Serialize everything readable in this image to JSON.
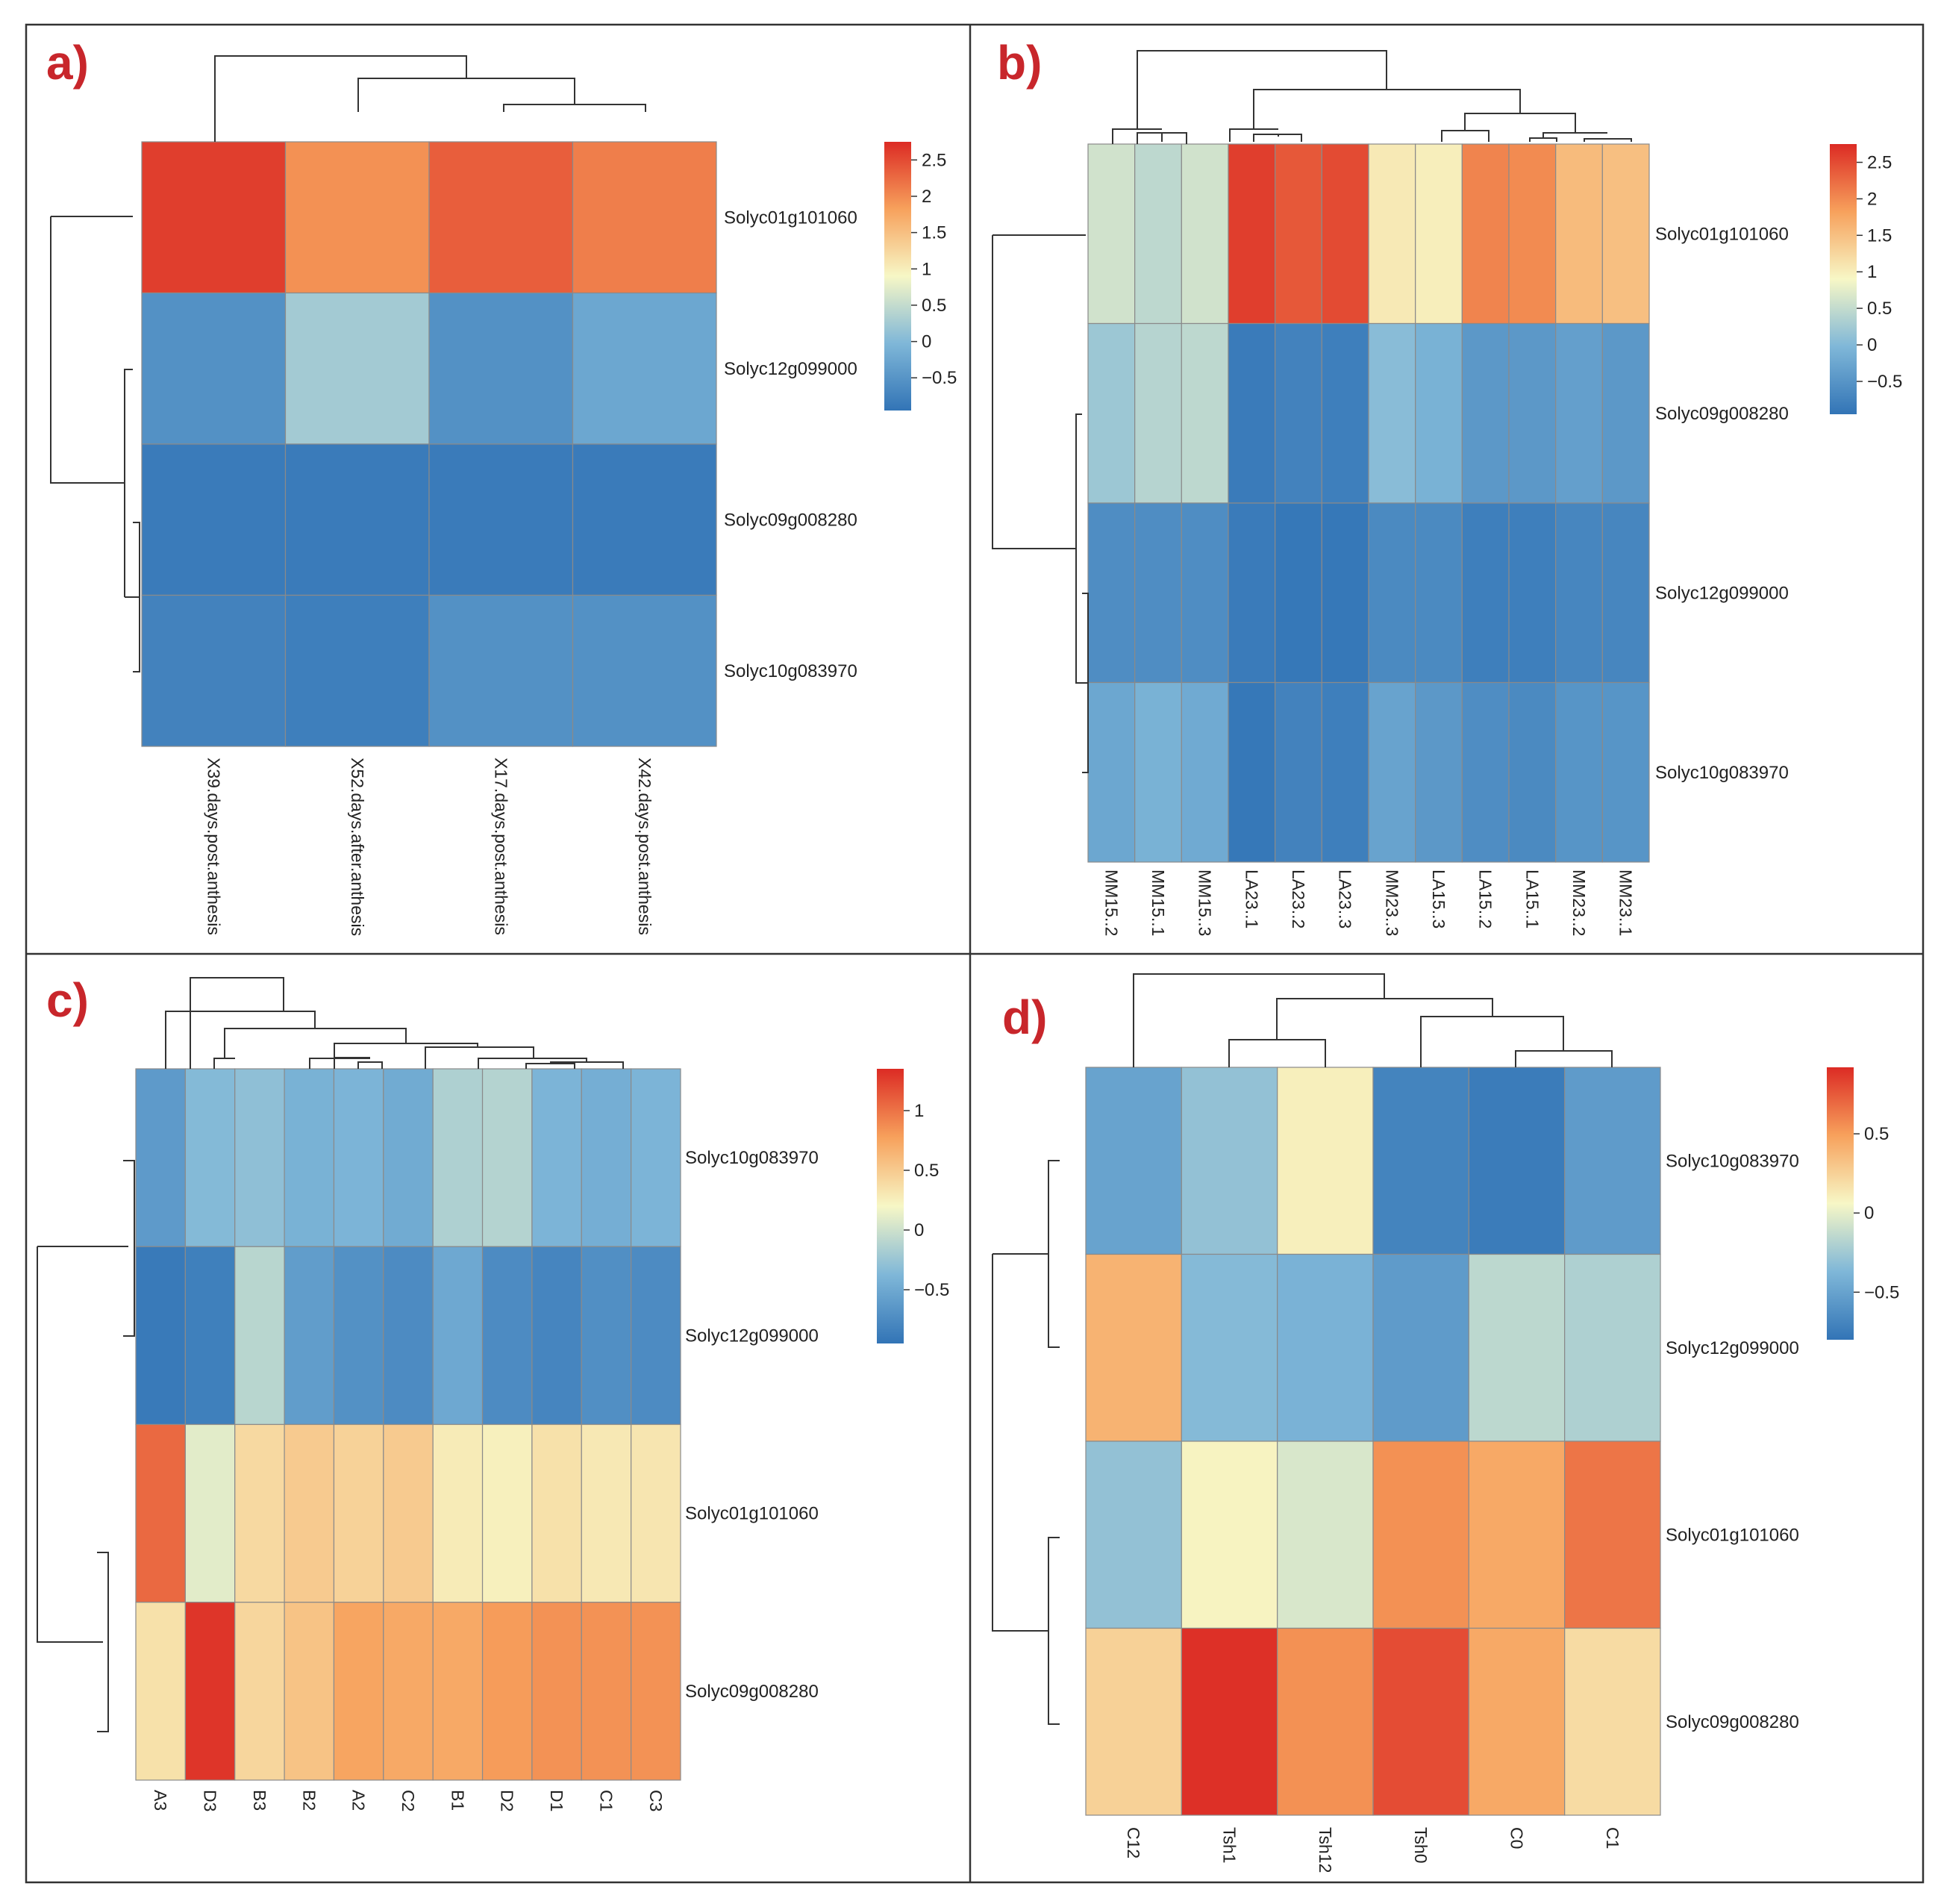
{
  "chart_data": [
    {
      "type": "heatmap",
      "panel_label": "a)",
      "rows": [
        "Solyc01g101060",
        "Solyc12g099000",
        "Solyc09g008280",
        "Solyc10g083970"
      ],
      "columns": [
        "X39.days.post.anthesis",
        "X52.days.after.anthesis",
        "X17.days.post.anthesis",
        "X42.days.post.anthesis"
      ],
      "values": [
        [
          2.6,
          1.95,
          2.35,
          2.1
        ],
        [
          -0.55,
          0.25,
          -0.55,
          -0.25
        ],
        [
          -0.85,
          -0.85,
          -0.85,
          -0.85
        ],
        [
          -0.75,
          -0.8,
          -0.55,
          -0.55
        ]
      ],
      "legend": {
        "min": -0.95,
        "max": 2.75,
        "ticks": [
          2.5,
          2,
          1.5,
          1,
          0.5,
          0,
          -0.5
        ],
        "tick_labels": [
          "2.5",
          "2",
          "1.5",
          "1",
          "0.5",
          "0",
          "−0.5"
        ]
      },
      "row_dendrogram": true,
      "column_dendrogram": true
    },
    {
      "type": "heatmap",
      "panel_label": "b)",
      "rows": [
        "Solyc01g101060",
        "Solyc09g008280",
        "Solyc12g099000",
        "Solyc10g083970"
      ],
      "columns": [
        "MM15..2",
        "MM15..1",
        "MM15..3",
        "LA23..1",
        "LA23..2",
        "LA23..3",
        "MM23..3",
        "LA15..3",
        "LA15..2",
        "LA15..1",
        "MM23..2",
        "MM23..1"
      ],
      "values": [
        [
          0.6,
          0.45,
          0.6,
          2.6,
          2.4,
          2.5,
          1.05,
          1.0,
          2.05,
          2.0,
          1.55,
          1.5
        ],
        [
          0.2,
          0.4,
          0.45,
          -0.85,
          -0.75,
          -0.8,
          0.05,
          -0.1,
          -0.45,
          -0.45,
          -0.35,
          -0.45
        ],
        [
          -0.6,
          -0.6,
          -0.6,
          -0.85,
          -0.9,
          -0.9,
          -0.65,
          -0.65,
          -0.8,
          -0.8,
          -0.7,
          -0.7
        ],
        [
          -0.25,
          -0.1,
          -0.2,
          -0.9,
          -0.75,
          -0.8,
          -0.3,
          -0.45,
          -0.6,
          -0.65,
          -0.5,
          -0.5
        ]
      ],
      "legend": {
        "min": -0.95,
        "max": 2.75,
        "ticks": [
          2.5,
          2,
          1.5,
          1,
          0.5,
          0,
          -0.5
        ],
        "tick_labels": [
          "2.5",
          "2",
          "1.5",
          "1",
          "0.5",
          "0",
          "−0.5"
        ]
      },
      "row_dendrogram": true,
      "column_dendrogram": true
    },
    {
      "type": "heatmap",
      "panel_label": "c)",
      "rows": [
        "Solyc10g083970",
        "Solyc12g099000",
        "Solyc01g101060",
        "Solyc09g008280"
      ],
      "columns": [
        "A3",
        "D3",
        "B3",
        "B2",
        "A2",
        "C2",
        "B1",
        "D2",
        "D1",
        "C1",
        "C3"
      ],
      "values": [
        [
          -0.62,
          -0.35,
          -0.3,
          -0.42,
          -0.4,
          -0.48,
          -0.15,
          -0.12,
          -0.4,
          -0.45,
          -0.4
        ],
        [
          -0.9,
          -0.85,
          -0.1,
          -0.6,
          -0.7,
          -0.75,
          -0.5,
          -0.75,
          -0.8,
          -0.72,
          -0.75
        ],
        [
          1.05,
          0.1,
          0.4,
          0.5,
          0.45,
          0.5,
          0.28,
          0.25,
          0.35,
          0.3,
          0.32
        ],
        [
          0.35,
          1.3,
          0.42,
          0.55,
          0.75,
          0.72,
          0.72,
          0.8,
          0.85,
          0.85,
          0.85
        ]
      ],
      "legend": {
        "min": -0.95,
        "max": 1.35,
        "ticks": [
          1,
          0.5,
          0,
          -0.5
        ],
        "tick_labels": [
          "1",
          "0.5",
          "0",
          "−0.5"
        ]
      },
      "row_dendrogram": true,
      "column_dendrogram": true
    },
    {
      "type": "heatmap",
      "panel_label": "d)",
      "rows": [
        "Solyc10g083970",
        "Solyc12g099000",
        "Solyc01g101060",
        "Solyc09g008280"
      ],
      "columns": [
        "C12",
        "Tsh1",
        "Tsh12",
        "Tsh0",
        "C0",
        "C1"
      ],
      "values": [
        [
          -0.5,
          -0.3,
          0.1,
          -0.7,
          -0.75,
          -0.55
        ],
        [
          0.4,
          -0.35,
          -0.4,
          -0.55,
          -0.15,
          -0.2
        ],
        [
          -0.3,
          0.08,
          -0.05,
          0.55,
          0.45,
          0.65
        ],
        [
          0.25,
          0.9,
          0.55,
          0.8,
          0.45,
          0.2
        ]
      ],
      "legend": {
        "min": -0.8,
        "max": 0.92,
        "ticks": [
          0.5,
          0,
          -0.5
        ],
        "tick_labels": [
          "0.5",
          "0",
          "−0.5"
        ]
      },
      "row_dendrogram": true,
      "column_dendrogram": true
    }
  ]
}
